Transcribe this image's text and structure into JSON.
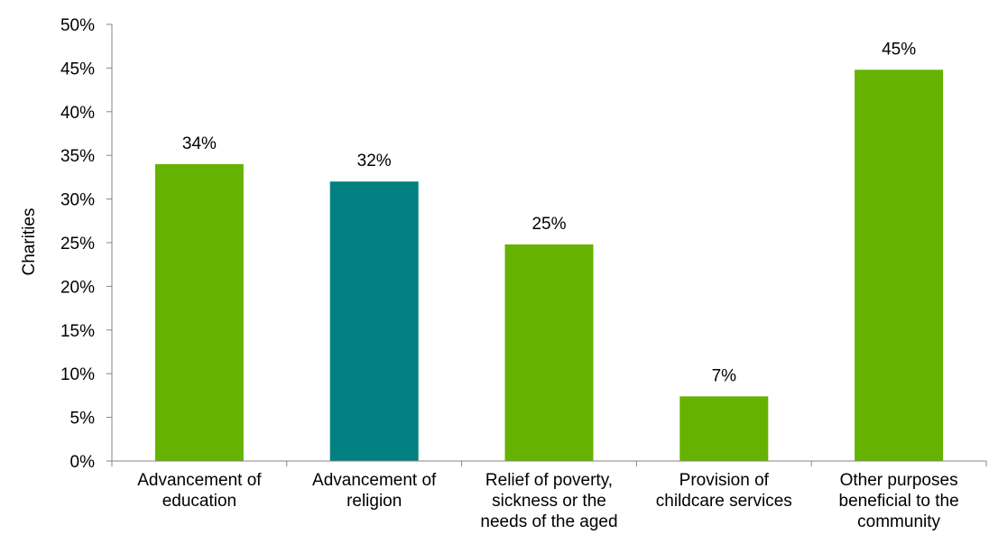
{
  "chart_data": {
    "type": "bar",
    "title": "",
    "xlabel": "",
    "ylabel": "Charities",
    "ylim": [
      0,
      50
    ],
    "y_ticks": [
      "0%",
      "5%",
      "10%",
      "15%",
      "20%",
      "25%",
      "30%",
      "35%",
      "40%",
      "45%",
      "50%"
    ],
    "grid": false,
    "categories": [
      [
        "Advancement of",
        "education"
      ],
      [
        "Advancement of",
        "religion"
      ],
      [
        "Relief of poverty,",
        "sickness or the",
        "needs of the aged"
      ],
      [
        "Provision of",
        "childcare services"
      ],
      [
        "Other purposes",
        "beneficial to the",
        "community"
      ]
    ],
    "values": [
      34,
      32,
      24.8,
      7.4,
      44.8
    ],
    "data_labels": [
      "34%",
      "32%",
      "25%",
      "7%",
      "45%"
    ],
    "bar_colors": [
      "#66b200",
      "#008080",
      "#66b200",
      "#66b200",
      "#66b200"
    ]
  }
}
